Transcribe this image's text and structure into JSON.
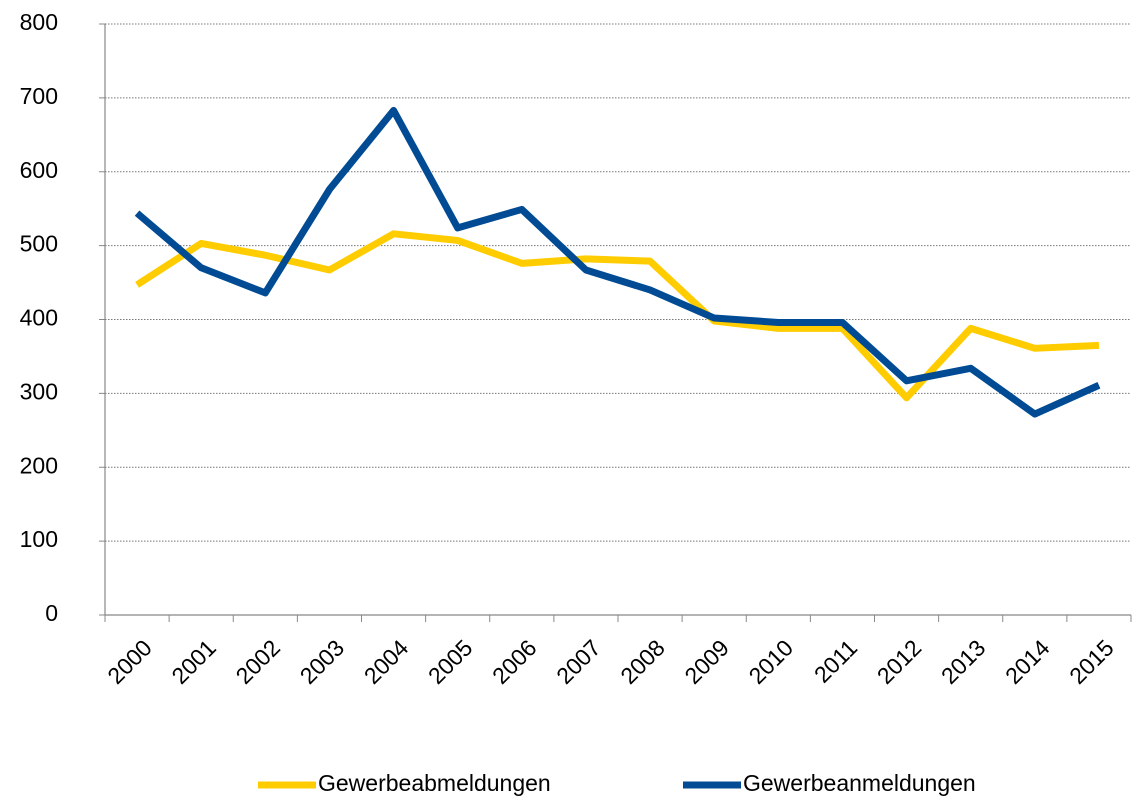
{
  "chart_data": {
    "type": "line",
    "categories": [
      "2000",
      "2001",
      "2002",
      "2003",
      "2004",
      "2005",
      "2006",
      "2007",
      "2008",
      "2009",
      "2010",
      "2011",
      "2012",
      "2013",
      "2014",
      "2015"
    ],
    "series": [
      {
        "name": "Gewerbeabmeldungen",
        "color": "#ffcc00",
        "values": [
          447,
          503,
          487,
          467,
          516,
          507,
          476,
          482,
          479,
          398,
          388,
          388,
          294,
          388,
          361,
          365
        ]
      },
      {
        "name": "Gewerbeanmeldungen",
        "color": "#004b93",
        "values": [
          544,
          470,
          436,
          576,
          683,
          524,
          549,
          467,
          440,
          402,
          396,
          396,
          317,
          334,
          272,
          311
        ]
      }
    ],
    "ylim": [
      0,
      800
    ],
    "yticks": [
      0,
      100,
      200,
      300,
      400,
      500,
      600,
      700,
      800
    ],
    "grid": true,
    "legend": "bottom"
  }
}
